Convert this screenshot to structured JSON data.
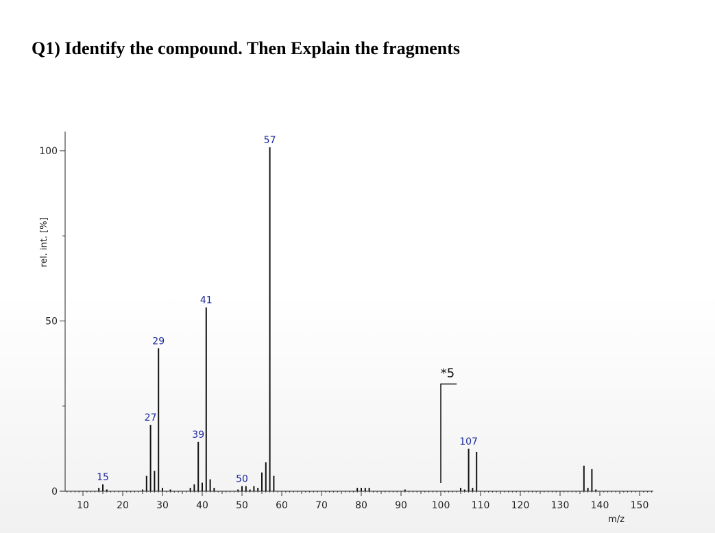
{
  "question": "Q1) Identify the compound. Then Explain the fragments",
  "chart_data": {
    "type": "bar",
    "title": "",
    "xlabel": "m/z",
    "ylabel": "rel. int. [%]",
    "xlim": [
      5,
      155
    ],
    "ylim": [
      0,
      100
    ],
    "x_ticks": [
      10,
      20,
      30,
      40,
      50,
      60,
      70,
      80,
      90,
      100,
      110,
      120,
      130,
      140,
      150
    ],
    "y_ticks": [
      0,
      50,
      100
    ],
    "peaks": [
      {
        "mz": 14,
        "intensity": 1
      },
      {
        "mz": 15,
        "intensity": 2,
        "label": "15"
      },
      {
        "mz": 16,
        "intensity": 0.5
      },
      {
        "mz": 25,
        "intensity": 0.5
      },
      {
        "mz": 26,
        "intensity": 4.5
      },
      {
        "mz": 27,
        "intensity": 19.5,
        "label": "27"
      },
      {
        "mz": 28,
        "intensity": 6
      },
      {
        "mz": 29,
        "intensity": 42,
        "label": "29"
      },
      {
        "mz": 30,
        "intensity": 1
      },
      {
        "mz": 32,
        "intensity": 0.5
      },
      {
        "mz": 37,
        "intensity": 1
      },
      {
        "mz": 38,
        "intensity": 2
      },
      {
        "mz": 39,
        "intensity": 14.5,
        "label": "39"
      },
      {
        "mz": 40,
        "intensity": 2.5
      },
      {
        "mz": 41,
        "intensity": 54,
        "label": "41"
      },
      {
        "mz": 42,
        "intensity": 3.5
      },
      {
        "mz": 43,
        "intensity": 1
      },
      {
        "mz": 49,
        "intensity": 0.5
      },
      {
        "mz": 50,
        "intensity": 1.5,
        "label": "50"
      },
      {
        "mz": 51,
        "intensity": 1.5
      },
      {
        "mz": 52,
        "intensity": 0.5
      },
      {
        "mz": 53,
        "intensity": 1.5
      },
      {
        "mz": 54,
        "intensity": 1
      },
      {
        "mz": 55,
        "intensity": 5.5
      },
      {
        "mz": 56,
        "intensity": 8.5
      },
      {
        "mz": 57,
        "intensity": 101,
        "label": "57"
      },
      {
        "mz": 58,
        "intensity": 4.5
      },
      {
        "mz": 79,
        "intensity": 1
      },
      {
        "mz": 80,
        "intensity": 1
      },
      {
        "mz": 81,
        "intensity": 1
      },
      {
        "mz": 82,
        "intensity": 1
      },
      {
        "mz": 91,
        "intensity": 0.5
      },
      {
        "mz": 105,
        "intensity": 1
      },
      {
        "mz": 106,
        "intensity": 0.5
      },
      {
        "mz": 107,
        "intensity": 12.5,
        "label": "107"
      },
      {
        "mz": 108,
        "intensity": 1
      },
      {
        "mz": 109,
        "intensity": 11.5
      },
      {
        "mz": 136,
        "intensity": 7.5
      },
      {
        "mz": 137,
        "intensity": 1
      },
      {
        "mz": 138,
        "intensity": 6.5
      },
      {
        "mz": 139,
        "intensity": 0.5
      }
    ],
    "magnification": {
      "label": "*5",
      "from_mz": 100,
      "to_mz": 104,
      "level": 31.5
    }
  }
}
